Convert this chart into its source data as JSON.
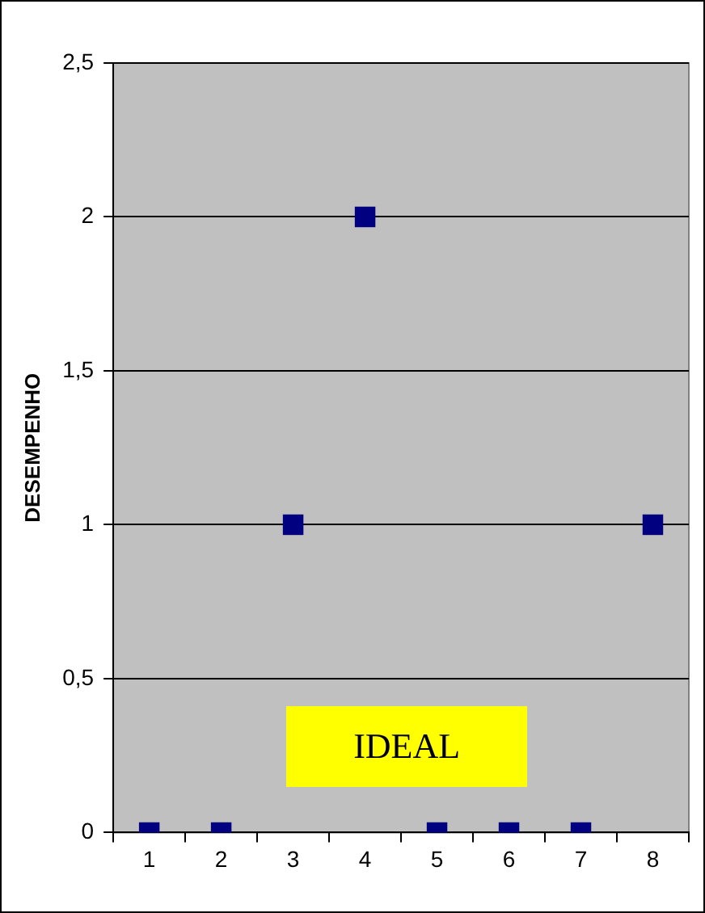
{
  "chart_data": {
    "type": "scatter",
    "ylabel": "DESEMPENHO",
    "categories": [
      "1",
      "2",
      "3",
      "4",
      "5",
      "6",
      "7",
      "8"
    ],
    "series": [
      {
        "color": "#000080",
        "values": [
          0,
          0,
          1,
          2,
          0,
          0,
          0,
          1
        ]
      }
    ],
    "ylim": [
      0,
      2.5
    ],
    "yticks": [
      0,
      {
        "value": 0.5,
        "label": "0,5"
      },
      1,
      {
        "value": 1.5,
        "label": "1,5"
      },
      2,
      {
        "value": 2.5,
        "label": "2,5"
      }
    ],
    "grid": "y",
    "marker": "square",
    "legend": false,
    "annotations": [
      "IDEAL"
    ]
  }
}
